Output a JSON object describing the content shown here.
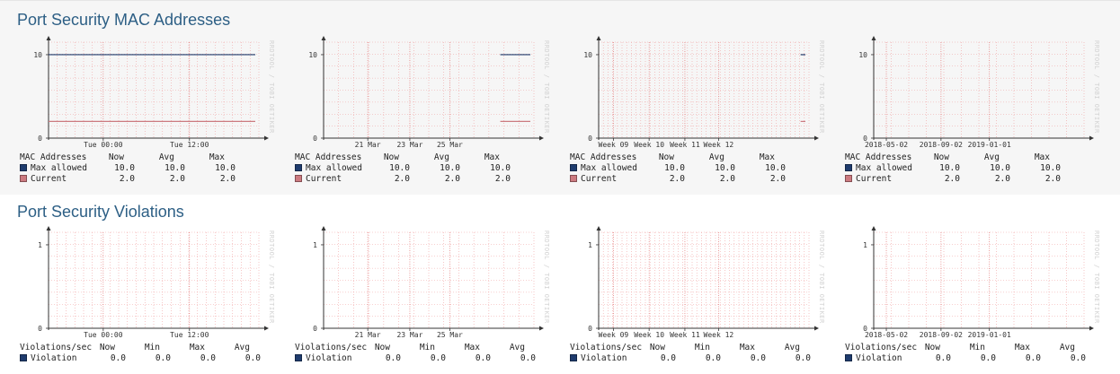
{
  "sections": [
    {
      "title": "Port Security MAC Addresses",
      "legend_title": "MAC Addresses",
      "columns": [
        "Now",
        "Avg",
        "Max"
      ],
      "y_labels": [
        "10",
        "0"
      ],
      "watermark": "RRDTOOL / TOBI OETIKER",
      "series": [
        {
          "name": "Max allowed",
          "color": "#1f3c6e",
          "stats": [
            "10.0",
            "10.0",
            "10.0"
          ],
          "value": 10
        },
        {
          "name": "Current",
          "color": "#cc7a80",
          "stats": [
            "2.0",
            "2.0",
            "2.0"
          ],
          "value": 2
        }
      ],
      "graphs": [
        {
          "period": "day",
          "x_labels": [
            "Tue 00:00",
            "Tue 12:00"
          ],
          "data_start": 0.0
        },
        {
          "period": "week",
          "x_labels": [
            "21 Mar",
            "23 Mar",
            "25 Mar"
          ],
          "data_start": 0.84
        },
        {
          "period": "month",
          "x_labels": [
            "Week 09",
            "Week 10",
            "Week 11",
            "Week 12"
          ],
          "data_start": 0.96
        },
        {
          "period": "year",
          "x_labels": [
            "2018-05-02",
            "2018-09-02",
            "2019-01-01"
          ],
          "data_start": null
        }
      ]
    },
    {
      "title": "Port Security Violations",
      "legend_title": "Violations/sec",
      "columns": [
        "Now",
        "Min",
        "Max",
        "Avg"
      ],
      "y_labels": [
        "1",
        "0"
      ],
      "watermark": "RRDTOOL / TOBI OETIKER",
      "series": [
        {
          "name": "Violation",
          "color": "#1f3c6e",
          "stats": [
            "0.0",
            "0.0",
            "0.0",
            "0.0"
          ],
          "value": 0
        }
      ],
      "graphs": [
        {
          "period": "day",
          "x_labels": [
            "Tue 00:00",
            "Tue 12:00"
          ],
          "data_start": null
        },
        {
          "period": "week",
          "x_labels": [
            "21 Mar",
            "23 Mar",
            "25 Mar"
          ],
          "data_start": null
        },
        {
          "period": "month",
          "x_labels": [
            "Week 09",
            "Week 10",
            "Week 11",
            "Week 12"
          ],
          "data_start": null
        },
        {
          "period": "year",
          "x_labels": [
            "2018-05-02",
            "2018-09-02",
            "2019-01-01"
          ],
          "data_start": null
        }
      ]
    }
  ]
}
